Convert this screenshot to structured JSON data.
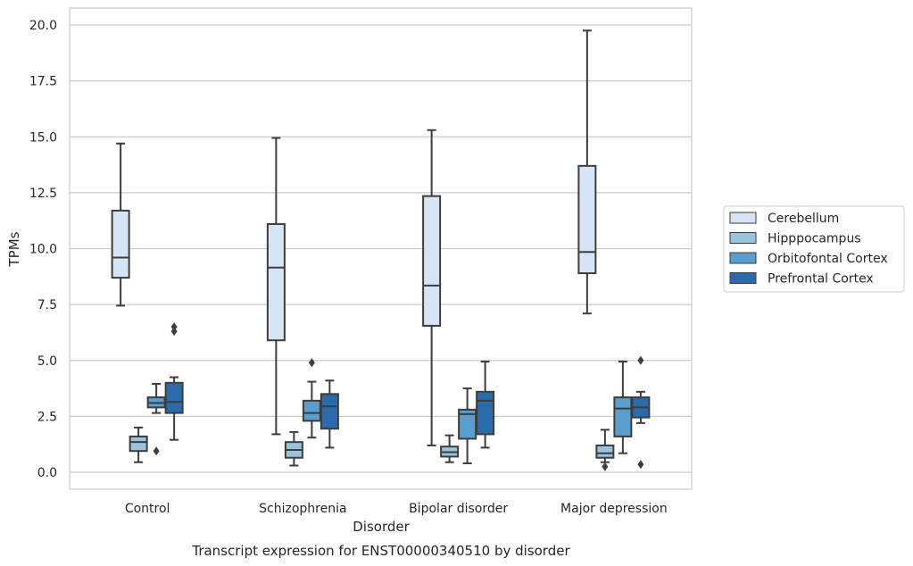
{
  "chart_data": {
    "type": "box",
    "title": "Transcript expression for ENST00000340510 by disorder",
    "xlabel": "Disorder",
    "ylabel": "TPMs",
    "ylim": [
      -0.7,
      20.7
    ],
    "yticks": [
      "0.0",
      "2.5",
      "5.0",
      "7.5",
      "10.0",
      "12.5",
      "15.0",
      "17.5",
      "20.0"
    ],
    "grid": "horizontal",
    "legend_position": "right",
    "categories": [
      "Control",
      "Schizophrenia",
      "Bipolar disorder",
      "Major depression"
    ],
    "series": [
      {
        "name": "Cerebellum",
        "color": "#d6e5f4",
        "boxes": [
          {
            "whislo": 7.45,
            "q1": 8.7,
            "med": 9.6,
            "q3": 11.7,
            "whishi": 14.7,
            "fliers": []
          },
          {
            "whislo": 1.7,
            "q1": 5.9,
            "med": 9.15,
            "q3": 11.1,
            "whishi": 14.95,
            "fliers": []
          },
          {
            "whislo": 1.2,
            "q1": 6.55,
            "med": 8.35,
            "q3": 12.35,
            "whishi": 15.3,
            "fliers": []
          },
          {
            "whislo": 7.1,
            "q1": 8.9,
            "med": 9.85,
            "q3": 13.7,
            "whishi": 19.75,
            "fliers": []
          }
        ]
      },
      {
        "name": "Hipppocampus",
        "color": "#9ac3de",
        "boxes": [
          {
            "whislo": 0.45,
            "q1": 0.95,
            "med": 1.35,
            "q3": 1.6,
            "whishi": 2.0,
            "fliers": []
          },
          {
            "whislo": 0.3,
            "q1": 0.65,
            "med": 1.0,
            "q3": 1.35,
            "whishi": 1.8,
            "fliers": []
          },
          {
            "whislo": 0.45,
            "q1": 0.7,
            "med": 0.9,
            "q3": 1.15,
            "whishi": 1.65,
            "fliers": []
          },
          {
            "whislo": 0.45,
            "q1": 0.65,
            "med": 0.85,
            "q3": 1.2,
            "whishi": 1.9,
            "fliers": [
              0.25
            ]
          }
        ]
      },
      {
        "name": "Orbitofontal Cortex",
        "color": "#5a9ecd",
        "boxes": [
          {
            "whislo": 2.65,
            "q1": 2.9,
            "med": 3.1,
            "q3": 3.35,
            "whishi": 3.95,
            "fliers": [
              0.95
            ]
          },
          {
            "whislo": 1.55,
            "q1": 2.3,
            "med": 2.65,
            "q3": 3.2,
            "whishi": 4.05,
            "fliers": [
              4.9
            ]
          },
          {
            "whislo": 0.4,
            "q1": 1.5,
            "med": 2.6,
            "q3": 2.8,
            "whishi": 3.75,
            "fliers": []
          },
          {
            "whislo": 0.85,
            "q1": 1.6,
            "med": 2.85,
            "q3": 3.35,
            "whishi": 4.95,
            "fliers": []
          }
        ]
      },
      {
        "name": "Prefrontal Cortex",
        "color": "#2b6ba9",
        "boxes": [
          {
            "whislo": 1.45,
            "q1": 2.65,
            "med": 3.15,
            "q3": 4.0,
            "whishi": 4.25,
            "fliers": [
              6.3,
              6.5
            ]
          },
          {
            "whislo": 1.1,
            "q1": 1.95,
            "med": 2.95,
            "q3": 3.5,
            "whishi": 4.1,
            "fliers": []
          },
          {
            "whislo": 1.1,
            "q1": 1.7,
            "med": 3.2,
            "q3": 3.6,
            "whishi": 4.95,
            "fliers": []
          },
          {
            "whislo": 2.2,
            "q1": 2.45,
            "med": 2.9,
            "q3": 3.35,
            "whishi": 3.6,
            "fliers": [
              0.35,
              5.0
            ]
          }
        ]
      }
    ]
  }
}
